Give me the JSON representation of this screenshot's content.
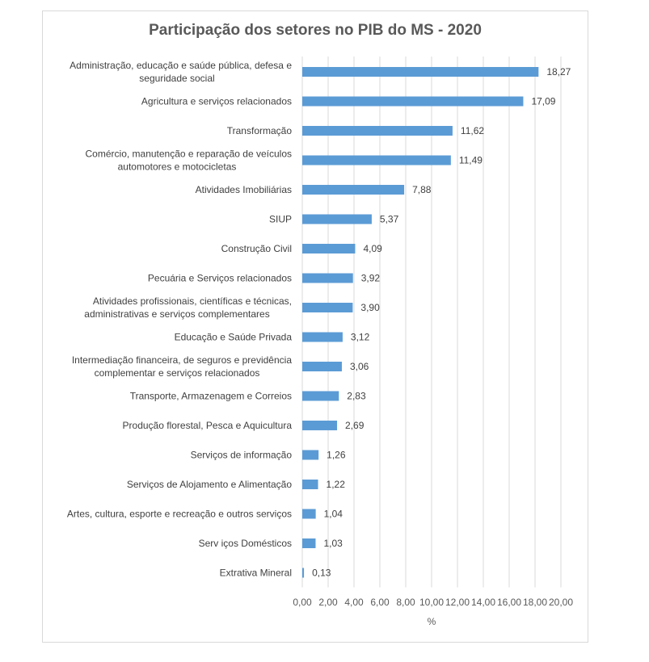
{
  "chart_data": {
    "type": "bar",
    "orientation": "horizontal",
    "title": "Participação dos setores no PIB do MS - 2020",
    "xlabel": "%",
    "ylabel": "",
    "xlim": [
      0,
      20
    ],
    "x_ticks": [
      "0,00",
      "2,00",
      "4,00",
      "6,00",
      "8,00",
      "10,00",
      "12,00",
      "14,00",
      "16,00",
      "18,00",
      "20,00"
    ],
    "grid": "vertical",
    "bar_color": "#5b9bd5",
    "categories": [
      [
        "Administração, educação e saúde pública, defesa e",
        "seguridade social"
      ],
      [
        "Agricultura e serviços relacionados"
      ],
      [
        "Transformação"
      ],
      [
        "Comércio, manutenção e reparação de veículos",
        "automotores e motocicletas"
      ],
      [
        "Atividades Imobiliárias"
      ],
      [
        "SIUP"
      ],
      [
        "Construção Civil"
      ],
      [
        "Pecuária e Serviços relacionados"
      ],
      [
        "Atividades profissionais, científicas e técnicas,",
        "administrativas e serviços complementares"
      ],
      [
        "Educação e Saúde Privada"
      ],
      [
        "Intermediação financeira, de seguros e previdência",
        "complementar e serviços relacionados"
      ],
      [
        "Transporte, Armazenagem e Correios"
      ],
      [
        "Produção florestal, Pesca e Aquicultura"
      ],
      [
        "Serviços de informação"
      ],
      [
        "Serviços de Alojamento e Alimentação"
      ],
      [
        "Artes, cultura, esporte e recreação e outros serviços"
      ],
      [
        "Serv iços Domésticos"
      ],
      [
        "Extrativa Mineral"
      ]
    ],
    "values": [
      18.27,
      17.09,
      11.62,
      11.49,
      7.88,
      5.37,
      4.09,
      3.92,
      3.9,
      3.12,
      3.06,
      2.83,
      2.69,
      1.26,
      1.22,
      1.04,
      1.03,
      0.13
    ],
    "value_labels": [
      "18,27",
      "17,09",
      "11,62",
      "11,49",
      "7,88",
      "5,37",
      "4,09",
      "3,92",
      "3,90",
      "3,12",
      "3,06",
      "2,83",
      "2,69",
      "1,26",
      "1,22",
      "1,04",
      "1,03",
      "0,13"
    ]
  }
}
